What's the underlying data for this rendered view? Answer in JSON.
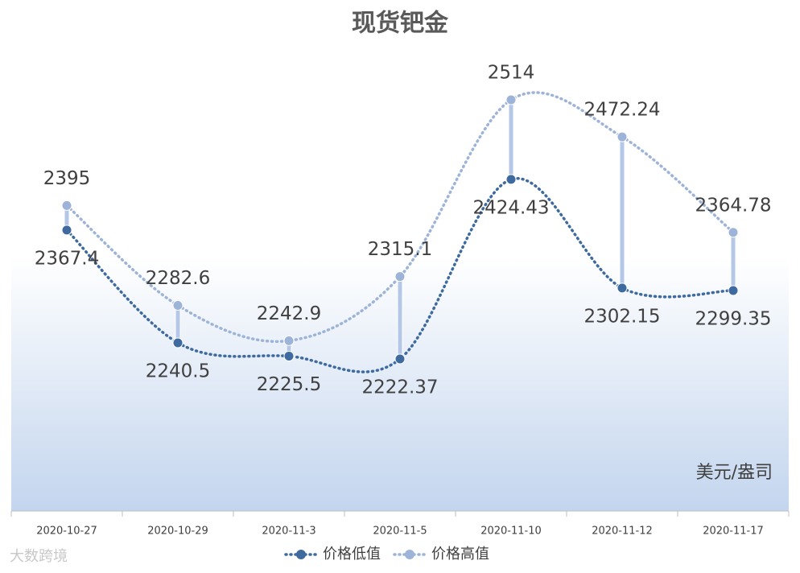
{
  "chart_data": {
    "type": "line",
    "title": "现货钯金",
    "unit_note": "美元/盎司",
    "watermark": "大数跨境",
    "categories": [
      "2020-10-27",
      "2020-10-29",
      "2020-11-3",
      "2020-11-5",
      "2020-11-10",
      "2020-11-12",
      "2020-11-17"
    ],
    "series": [
      {
        "name": "价格低值",
        "color": "#3e6aa0",
        "values": [
          2367.4,
          2240.5,
          2225.5,
          2222.37,
          2424.43,
          2302.15,
          2299.35
        ]
      },
      {
        "name": "价格高值",
        "color": "#9db3d8",
        "values": [
          2395,
          2282.6,
          2242.9,
          2315.1,
          2514,
          2472.24,
          2364.78
        ]
      }
    ],
    "high_low_lines": true,
    "smooth": true
  }
}
